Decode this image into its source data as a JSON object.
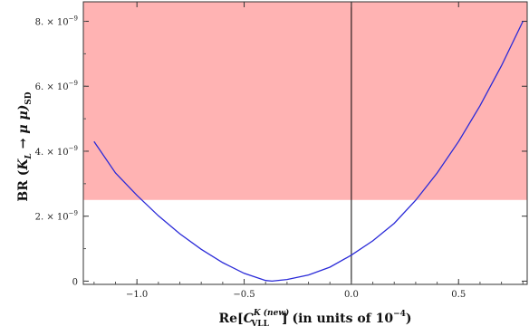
{
  "chart_data": {
    "type": "line",
    "title": "",
    "xlabel": {
      "prefix": "Re[",
      "symbol": "C",
      "superscript": "K (new)",
      "subscript": "VLL",
      "suffix": "]  (in units of 10",
      "exponent": "−4",
      "close": ")"
    },
    "ylabel": {
      "prefix": "BR (",
      "symbol": "K",
      "symbol_sub": "L",
      "middle": " → μ μ)",
      "subscript": "SD"
    },
    "xlim": [
      -1.25,
      0.82
    ],
    "ylim": [
      -1e-10,
      8.6e-09
    ],
    "x_ticks": [
      {
        "value": -1.0,
        "label": "−1.0"
      },
      {
        "value": -0.5,
        "label": "−0.5"
      },
      {
        "value": 0.0,
        "label": "0.0"
      },
      {
        "value": 0.5,
        "label": "0.5"
      }
    ],
    "y_ticks": [
      {
        "value": 0,
        "mant": "0",
        "exp": ""
      },
      {
        "value": 2e-09,
        "mant": "2. × 10",
        "exp": "−9"
      },
      {
        "value": 4e-09,
        "mant": "4. × 10",
        "exp": "−9"
      },
      {
        "value": 6e-09,
        "mant": "6. × 10",
        "exp": "−9"
      },
      {
        "value": 8e-09,
        "mant": "8. × 10",
        "exp": "−9"
      }
    ],
    "excluded_region": {
      "y_from": 2.5e-09,
      "y_to": "top",
      "color": "#ffb3b3"
    },
    "vertical_line": {
      "x": 0.0,
      "color": "#000000"
    },
    "series": [
      {
        "color": "#2a2ad8",
        "x": [
          -1.2,
          -1.1,
          -1.0,
          -0.9,
          -0.8,
          -0.7,
          -0.6,
          -0.5,
          -0.4,
          -0.37,
          -0.3,
          -0.2,
          -0.1,
          0.0,
          0.1,
          0.2,
          0.3,
          0.4,
          0.5,
          0.6,
          0.7,
          0.8
        ],
        "y": [
          4.3e-09,
          3.33e-09,
          2.64e-09,
          2.01e-09,
          1.46e-09,
          9.8e-10,
          5.7e-10,
          2.4e-10,
          2e-11,
          0.0,
          5e-11,
          1.9e-10,
          4.3e-10,
          8e-10,
          1.24e-09,
          1.78e-09,
          2.49e-09,
          3.33e-09,
          4.3e-09,
          5.4e-09,
          6.63e-09,
          8e-09
        ]
      }
    ]
  }
}
